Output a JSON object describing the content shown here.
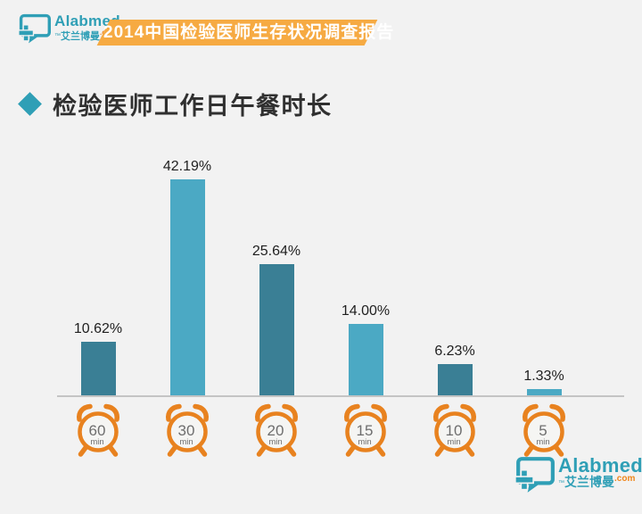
{
  "colors": {
    "background": "#f2f2f2",
    "brand-teal": "#2f9fb6",
    "banner-orange": "#f6aa42",
    "bar-dark": "#3a7f95",
    "bar-light": "#4ba9c4",
    "clock-orange": "#e8821f",
    "clock-face": "#f5f5f3",
    "clock-text": "#6e6e6e",
    "axis-gray": "#c4c4c4",
    "dotcom-orange": "#f08519"
  },
  "logo": {
    "name": "Alabmed",
    "tm": "™",
    "cjk": "艾兰博曼",
    "tld": ".com"
  },
  "header": {
    "banner_title": "2014中国检验医师生存状况调查报告"
  },
  "section": {
    "title": "检验医师工作日午餐时长"
  },
  "chart_data": {
    "type": "bar",
    "title": "检验医师工作日午餐时长",
    "categories": [
      "60 min",
      "30 min",
      "20 min",
      "15 min",
      "10 min",
      "5 min"
    ],
    "values": [
      10.62,
      42.19,
      25.64,
      14.0,
      6.23,
      1.33
    ],
    "value_labels": [
      "10.62%",
      "42.19%",
      "25.64%",
      "14.00%",
      "6.23%",
      "1.33%"
    ],
    "clock_numbers": [
      "60",
      "30",
      "20",
      "15",
      "10",
      "5"
    ],
    "clock_unit": "min",
    "xlabel": "",
    "ylabel": "",
    "ylim": [
      0,
      45
    ],
    "grid": false,
    "legend": "none",
    "bar_colors_alternate": [
      "#3a7f95",
      "#4ba9c4"
    ],
    "x_axis_icons": "alarm-clock"
  }
}
